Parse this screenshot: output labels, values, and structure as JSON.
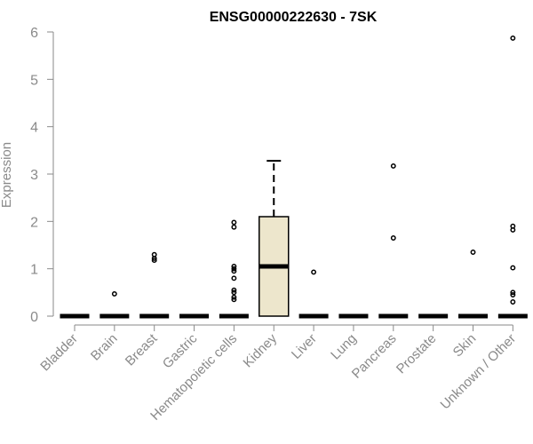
{
  "chart_data": {
    "type": "box",
    "title": "ENSG00000222630 - 7SK",
    "xlabel": "",
    "ylabel": "Expression",
    "ylim": [
      0,
      6
    ],
    "yticks": [
      0,
      1,
      2,
      3,
      4,
      5,
      6
    ],
    "grid": false,
    "colors": {
      "box_fill": "#ede6cc",
      "stroke": "#000000",
      "axis": "#8a8a8a"
    },
    "categories": [
      "Bladder",
      "Brain",
      "Breast",
      "Gastric",
      "Hematopoietic cells",
      "Kidney",
      "Liver",
      "Lung",
      "Pancreas",
      "Prostate",
      "Skin",
      "Unknown / Other"
    ],
    "boxes": [
      {
        "category": "Bladder",
        "min": 0,
        "q1": 0,
        "median": 0,
        "q3": 0,
        "max": 0,
        "outliers": []
      },
      {
        "category": "Brain",
        "min": 0,
        "q1": 0,
        "median": 0,
        "q3": 0,
        "max": 0,
        "outliers": [
          0.47
        ]
      },
      {
        "category": "Breast",
        "min": 0,
        "q1": 0,
        "median": 0,
        "q3": 0,
        "max": 0,
        "outliers": [
          1.18,
          1.22,
          1.3
        ]
      },
      {
        "category": "Gastric",
        "min": 0,
        "q1": 0,
        "median": 0,
        "q3": 0,
        "max": 0,
        "outliers": []
      },
      {
        "category": "Hematopoietic cells",
        "min": 0,
        "q1": 0,
        "median": 0,
        "q3": 0,
        "max": 0,
        "outliers": [
          0.35,
          0.4,
          0.5,
          0.55,
          0.8,
          0.95,
          1.0,
          1.05,
          1.88,
          1.98
        ]
      },
      {
        "category": "Kidney",
        "min": 0,
        "q1": 0,
        "median": 1.05,
        "q3": 2.1,
        "max": 3.28,
        "outliers": []
      },
      {
        "category": "Liver",
        "min": 0,
        "q1": 0,
        "median": 0,
        "q3": 0,
        "max": 0,
        "outliers": [
          0.93
        ]
      },
      {
        "category": "Lung",
        "min": 0,
        "q1": 0,
        "median": 0,
        "q3": 0,
        "max": 0,
        "outliers": []
      },
      {
        "category": "Pancreas",
        "min": 0,
        "q1": 0,
        "median": 0,
        "q3": 0,
        "max": 0,
        "outliers": [
          1.65,
          3.17
        ]
      },
      {
        "category": "Prostate",
        "min": 0,
        "q1": 0,
        "median": 0,
        "q3": 0,
        "max": 0,
        "outliers": []
      },
      {
        "category": "Skin",
        "min": 0,
        "q1": 0,
        "median": 0,
        "q3": 0,
        "max": 0,
        "outliers": [
          1.35
        ]
      },
      {
        "category": "Unknown / Other",
        "min": 0,
        "q1": 0,
        "median": 0,
        "q3": 0,
        "max": 0,
        "outliers": [
          0.3,
          0.45,
          0.5,
          1.02,
          1.82,
          1.9,
          5.87
        ]
      }
    ]
  }
}
